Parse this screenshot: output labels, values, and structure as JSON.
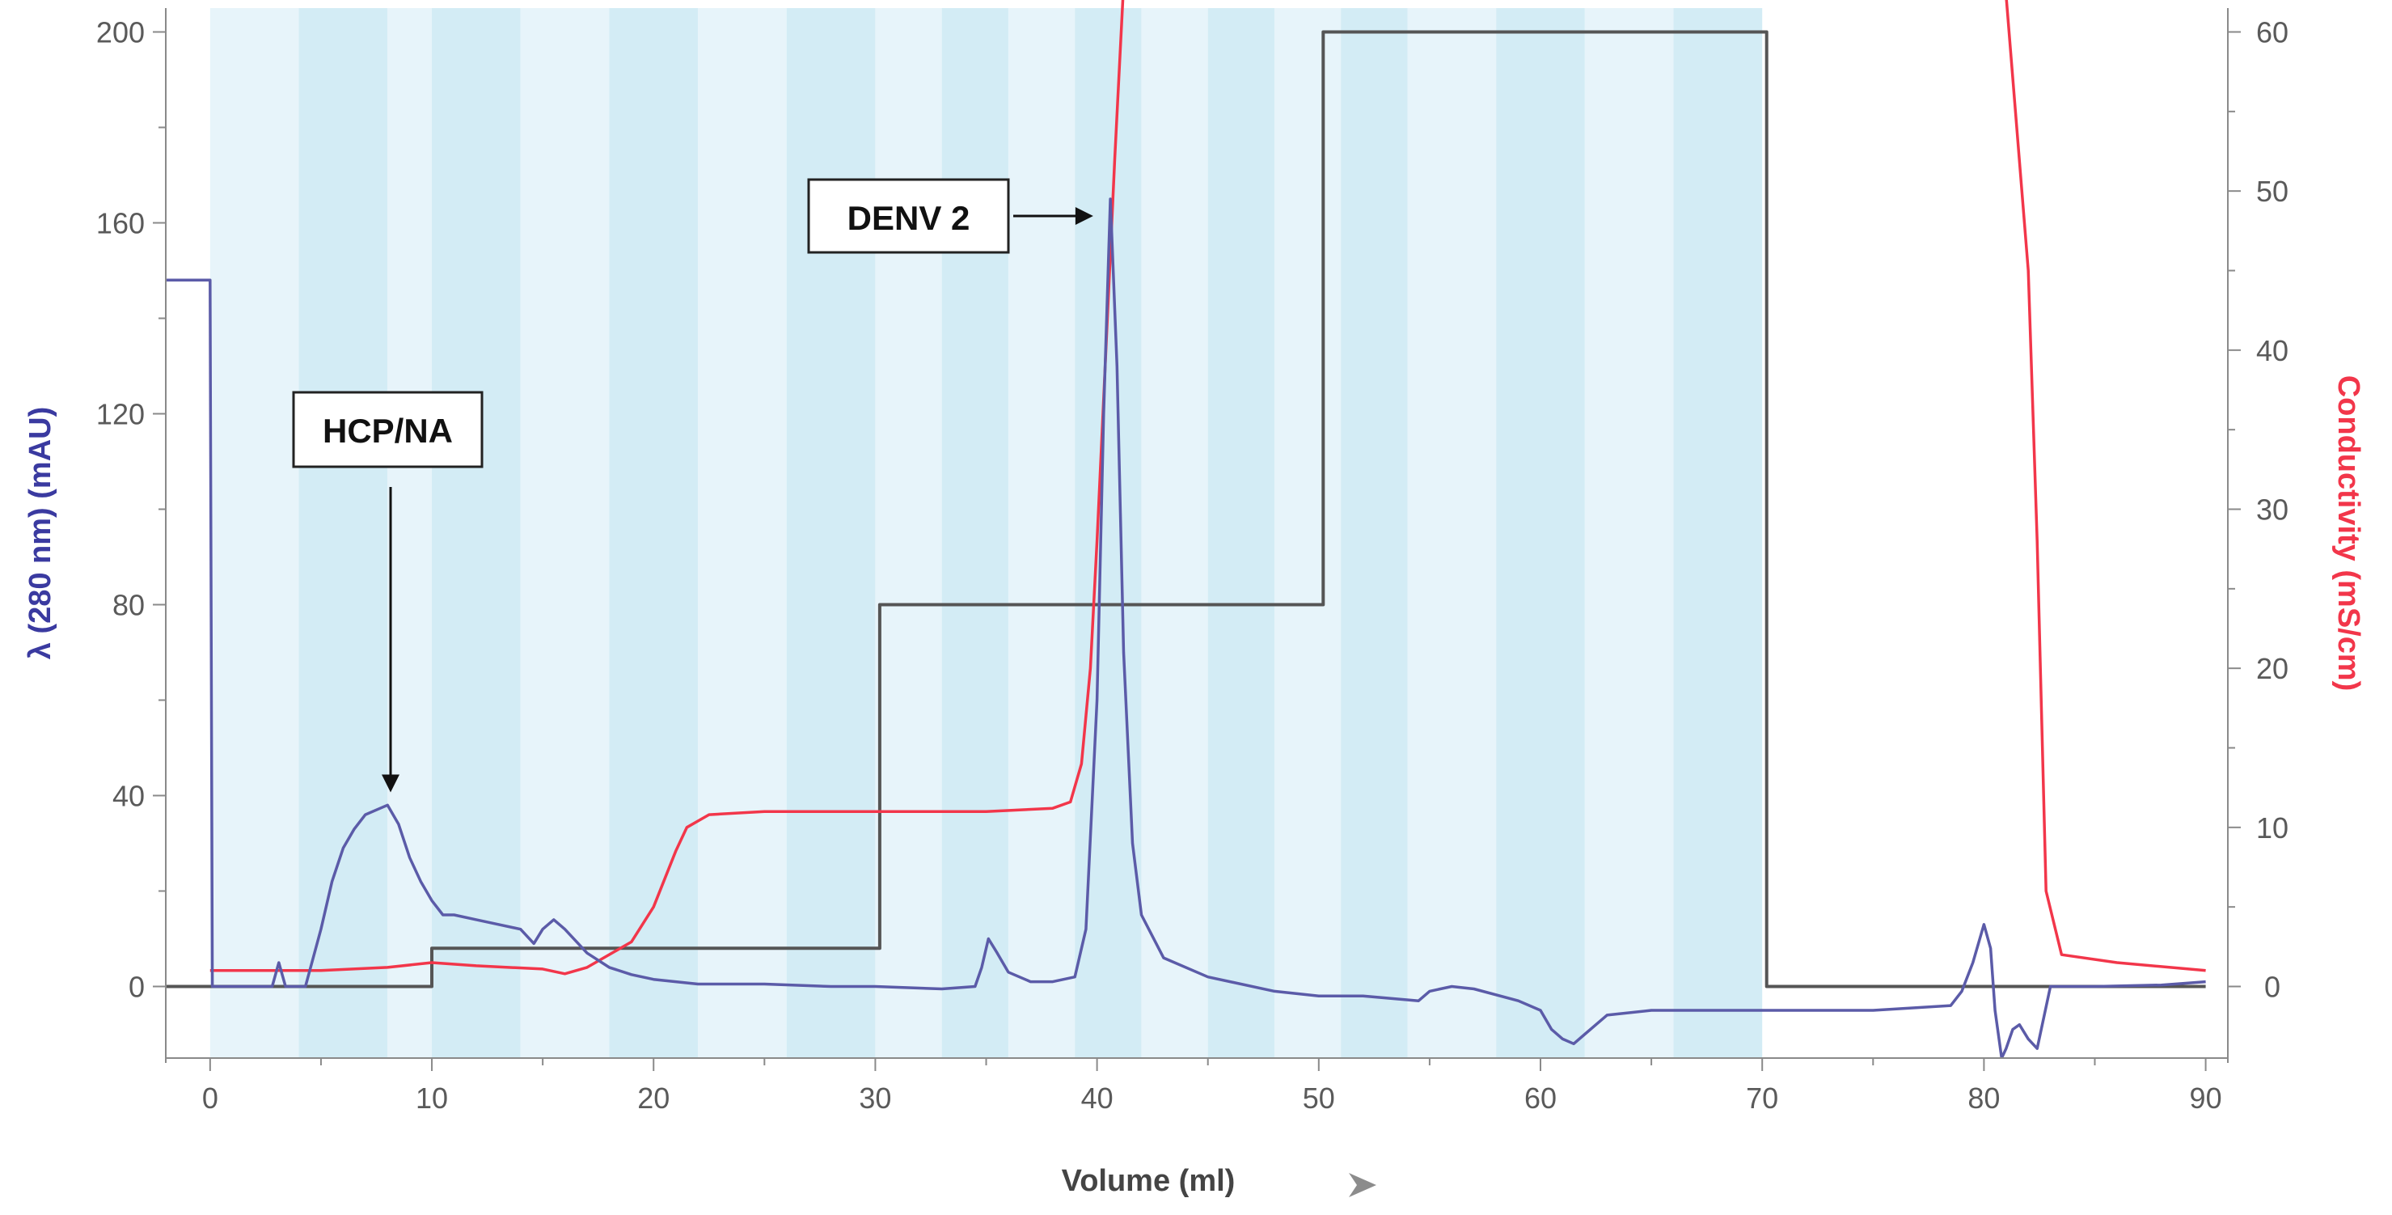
{
  "chart_data": {
    "type": "line",
    "xlabel": "Volume (ml)",
    "ylabel_left": "λ (280 nm) (mAU)",
    "ylabel_right": "Conductivity (mS/cm)",
    "xlim": [
      -2,
      91
    ],
    "ylim_left": [
      -15,
      205
    ],
    "ylim_right": [
      -4.5,
      61.5
    ],
    "x_ticks": [
      0,
      10,
      20,
      30,
      40,
      50,
      60,
      70,
      80,
      90
    ],
    "y_left_ticks": [
      0,
      40,
      80,
      120,
      160,
      200
    ],
    "y_right_ticks": [
      0,
      10,
      20,
      30,
      40,
      50,
      60
    ],
    "grid": false,
    "fraction_bands": [
      [
        0,
        4,
        "light"
      ],
      [
        4,
        8,
        "dark"
      ],
      [
        8,
        10,
        "light"
      ],
      [
        10,
        14,
        "dark"
      ],
      [
        14,
        18,
        "light"
      ],
      [
        18,
        22,
        "dark"
      ],
      [
        22,
        26,
        "light"
      ],
      [
        26,
        30,
        "dark"
      ],
      [
        30,
        33,
        "light"
      ],
      [
        33,
        36,
        "dark"
      ],
      [
        36,
        39,
        "light"
      ],
      [
        39,
        42,
        "dark"
      ],
      [
        42,
        45,
        "light"
      ],
      [
        45,
        48,
        "dark"
      ],
      [
        48,
        51,
        "light"
      ],
      [
        51,
        54,
        "dark"
      ],
      [
        54,
        58,
        "light"
      ],
      [
        58,
        62,
        "dark"
      ],
      [
        62,
        66,
        "light"
      ],
      [
        66,
        70,
        "dark"
      ]
    ],
    "colors": {
      "uv": "#5b5ba8",
      "conductivity": "#f2364a",
      "gradient": "#555555",
      "band_light": "#e7f4fa",
      "band_dark": "#d3ecf5",
      "left_axis_title": "#3a3aa0",
      "right_axis_title": "#f2364a",
      "axis": "#8a8a8a"
    },
    "series": [
      {
        "axis": "left",
        "points": [
          [
            -2,
            148
          ],
          [
            0,
            148
          ],
          [
            0.1,
            0
          ],
          [
            2.8,
            0
          ],
          [
            3.1,
            5
          ],
          [
            3.4,
            0
          ],
          [
            4.3,
            0
          ],
          [
            5,
            12
          ],
          [
            5.5,
            22
          ],
          [
            6,
            29
          ],
          [
            6.5,
            33
          ],
          [
            7,
            36
          ],
          [
            7.5,
            37
          ],
          [
            8,
            38
          ],
          [
            8.5,
            34
          ],
          [
            9,
            27
          ],
          [
            9.5,
            22
          ],
          [
            10,
            18
          ],
          [
            10.5,
            15
          ],
          [
            11,
            15
          ],
          [
            12,
            14
          ],
          [
            13,
            13
          ],
          [
            14,
            12
          ],
          [
            14.6,
            9
          ],
          [
            15,
            12
          ],
          [
            15.5,
            14
          ],
          [
            16,
            12
          ],
          [
            17,
            7
          ],
          [
            18,
            4
          ],
          [
            19,
            2.5
          ],
          [
            20,
            1.5
          ],
          [
            22,
            0.5
          ],
          [
            25,
            0.5
          ],
          [
            28,
            0
          ],
          [
            30,
            0
          ],
          [
            33,
            -0.5
          ],
          [
            34.5,
            0
          ],
          [
            34.8,
            4
          ],
          [
            35.1,
            10
          ],
          [
            35.5,
            7
          ],
          [
            36,
            3
          ],
          [
            37,
            1
          ],
          [
            38,
            1
          ],
          [
            39,
            2
          ],
          [
            39.5,
            12
          ],
          [
            40,
            60
          ],
          [
            40.3,
            120
          ],
          [
            40.6,
            165
          ],
          [
            40.9,
            130
          ],
          [
            41.2,
            70
          ],
          [
            41.6,
            30
          ],
          [
            42,
            15
          ],
          [
            43,
            6
          ],
          [
            45,
            2
          ],
          [
            48,
            -1
          ],
          [
            50,
            -2
          ],
          [
            52,
            -2
          ],
          [
            54.5,
            -3
          ],
          [
            55,
            -1
          ],
          [
            56,
            0
          ],
          [
            57,
            -0.5
          ],
          [
            59,
            -3
          ],
          [
            60,
            -5
          ],
          [
            60.5,
            -9
          ],
          [
            61,
            -11
          ],
          [
            61.5,
            -12
          ],
          [
            62,
            -10
          ],
          [
            63,
            -6
          ],
          [
            65,
            -5
          ],
          [
            70,
            -5
          ],
          [
            75,
            -5
          ],
          [
            78.5,
            -4
          ],
          [
            79,
            -1
          ],
          [
            79.5,
            5
          ],
          [
            80,
            13
          ],
          [
            80.3,
            8
          ],
          [
            80.5,
            -5
          ],
          [
            80.8,
            -15
          ],
          [
            81,
            -13
          ],
          [
            81.3,
            -9
          ],
          [
            81.6,
            -8
          ],
          [
            82,
            -11
          ],
          [
            82.4,
            -13
          ],
          [
            83,
            0
          ],
          [
            85,
            0
          ],
          [
            88,
            0.3
          ],
          [
            90,
            1
          ]
        ]
      },
      {
        "axis": "right",
        "points": [
          [
            0,
            1
          ],
          [
            5,
            1
          ],
          [
            8,
            1.2
          ],
          [
            10,
            1.5
          ],
          [
            12,
            1.3
          ],
          [
            15,
            1.1
          ],
          [
            16,
            0.8
          ],
          [
            17,
            1.2
          ],
          [
            19,
            2.8
          ],
          [
            20,
            5
          ],
          [
            21,
            8.5
          ],
          [
            21.5,
            10
          ],
          [
            22.5,
            10.8
          ],
          [
            25,
            11
          ],
          [
            30,
            11
          ],
          [
            35,
            11
          ],
          [
            38,
            11.2
          ],
          [
            38.8,
            11.6
          ],
          [
            39.3,
            14
          ],
          [
            39.7,
            20
          ],
          [
            40,
            28
          ],
          [
            40.4,
            40
          ],
          [
            40.8,
            52
          ],
          [
            41.2,
            63
          ]
        ]
      },
      {
        "axis": "right",
        "points": [
          [
            80.9,
            64
          ],
          [
            82,
            45
          ],
          [
            82.4,
            28
          ],
          [
            82.8,
            6
          ],
          [
            83.5,
            2
          ],
          [
            86,
            1.5
          ],
          [
            90,
            1
          ]
        ]
      },
      {
        "axis": "left",
        "points": [
          [
            -2,
            0
          ],
          [
            10,
            0
          ],
          [
            10,
            8
          ],
          [
            30.2,
            8
          ],
          [
            30.2,
            80
          ],
          [
            50.2,
            80
          ],
          [
            50.2,
            200
          ],
          [
            70.2,
            200
          ],
          [
            70.2,
            0
          ],
          [
            90,
            0
          ]
        ]
      }
    ],
    "annotations": [
      {
        "text": "HCP/NA",
        "target": [
          8.4,
          40
        ]
      },
      {
        "text": "DENV 2",
        "target": [
          39.9,
          164
        ]
      }
    ]
  }
}
